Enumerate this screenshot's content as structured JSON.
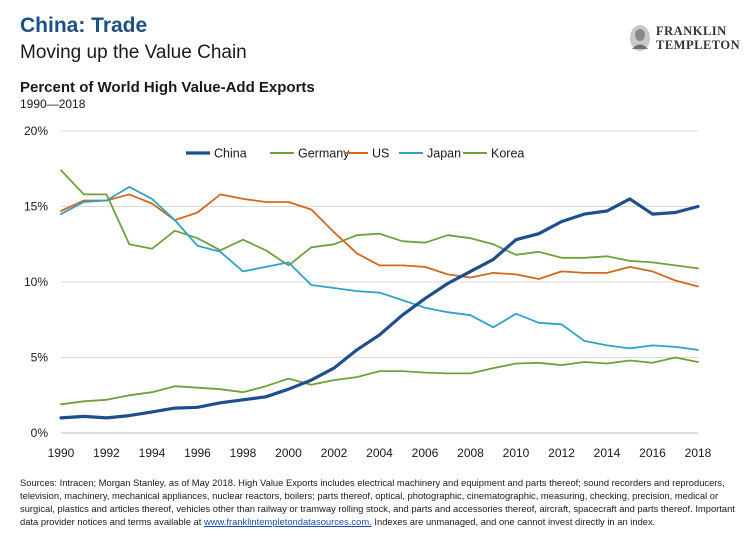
{
  "header": {
    "title": "China: Trade",
    "subtitle": "Moving up the Value Chain"
  },
  "logo": {
    "line1": "FRANKLIN",
    "line2": "TEMPLETON"
  },
  "footnote": {
    "text": "Sources: Intracen; Morgan Stanley, as of May 2018. High Value Exports includes electrical machinery and equipment and parts thereof; sound recorders and reproducers, television, machinery, mechanical appliances, nuclear reactors, boilers; parts thereof, optical, photographic, cinematographic, measuring, checking, precision, medical or surgical, plastics and articles thereof, vehicles other than railway or tramway rolling stock, and parts and accessories thereof, aircraft, spacecraft and parts thereof. Important data provider notices and terms available at ",
    "link": "www.franklintempletondatasources.com.",
    "tail": " Indexes are unmanaged, and one cannot invest directly in an index."
  },
  "chart_data": {
    "type": "line",
    "title": "Percent of World High Value-Add Exports",
    "subtitle": "1990—2018",
    "xlabel": "",
    "ylabel": "",
    "x": [
      1990,
      1991,
      1992,
      1993,
      1994,
      1995,
      1996,
      1997,
      1998,
      1999,
      2000,
      2001,
      2002,
      2003,
      2004,
      2005,
      2006,
      2007,
      2008,
      2009,
      2010,
      2011,
      2012,
      2013,
      2014,
      2015,
      2016,
      2017,
      2018
    ],
    "xticks": [
      "1990",
      "1992",
      "1994",
      "1996",
      "1998",
      "2000",
      "2002",
      "2004",
      "2006",
      "2008",
      "2010",
      "2012",
      "2014",
      "2016",
      "2018"
    ],
    "yticks": [
      "0%",
      "5%",
      "10%",
      "15%",
      "20%"
    ],
    "ylim": [
      0,
      20
    ],
    "legend_position": "top",
    "series": [
      {
        "name": "China",
        "color": "#1f4e8c",
        "width": 3.2,
        "values": [
          1.0,
          1.1,
          1.0,
          1.15,
          1.4,
          1.65,
          1.7,
          2.0,
          2.2,
          2.4,
          2.9,
          3.5,
          4.3,
          5.5,
          6.5,
          7.8,
          8.9,
          9.9,
          10.7,
          11.5,
          12.8,
          13.2,
          14.0,
          14.5,
          14.7,
          15.5,
          14.5,
          14.6,
          15.0
        ]
      },
      {
        "name": "Germany",
        "color": "#6ea13c",
        "width": 1.8,
        "values": [
          17.4,
          15.8,
          15.8,
          12.5,
          12.2,
          13.4,
          12.9,
          12.1,
          12.8,
          12.1,
          11.1,
          12.3,
          12.5,
          13.1,
          13.2,
          12.7,
          12.6,
          13.1,
          12.9,
          12.5,
          11.8,
          12.0,
          11.6,
          11.6,
          11.7,
          11.4,
          11.3,
          11.1,
          10.9
        ]
      },
      {
        "name": "US",
        "color": "#d2691e",
        "width": 1.8,
        "values": [
          14.7,
          15.4,
          15.4,
          15.8,
          15.2,
          14.1,
          14.6,
          15.8,
          15.5,
          15.3,
          15.3,
          14.8,
          13.3,
          11.9,
          11.1,
          11.1,
          11.0,
          10.5,
          10.3,
          10.6,
          10.5,
          10.2,
          10.7,
          10.6,
          10.6,
          11.0,
          10.7,
          10.1,
          9.7
        ]
      },
      {
        "name": "Japan",
        "color": "#2ea3c9",
        "width": 1.8,
        "values": [
          14.5,
          15.3,
          15.4,
          16.3,
          15.5,
          14.1,
          12.4,
          12.0,
          10.7,
          11.0,
          11.3,
          9.8,
          9.6,
          9.4,
          9.3,
          8.8,
          8.3,
          8.0,
          7.8,
          7.0,
          7.9,
          7.3,
          7.2,
          6.1,
          5.8,
          5.6,
          5.8,
          5.7,
          5.5
        ]
      },
      {
        "name": "Korea",
        "color": "#6ea13c",
        "width": 1.8,
        "values": [
          1.9,
          2.1,
          2.2,
          2.5,
          2.7,
          3.1,
          3.0,
          2.9,
          2.7,
          3.1,
          3.6,
          3.2,
          3.5,
          3.7,
          4.1,
          4.1,
          4.0,
          3.95,
          3.95,
          4.3,
          4.6,
          4.65,
          4.5,
          4.7,
          4.6,
          4.8,
          4.65,
          5.0,
          4.7
        ]
      }
    ]
  }
}
